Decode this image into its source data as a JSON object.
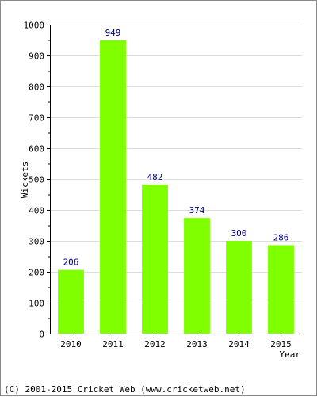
{
  "chart_data": {
    "type": "bar",
    "title": "",
    "xlabel": "Year",
    "ylabel": "Wickets",
    "categories": [
      "2010",
      "2011",
      "2012",
      "2013",
      "2014",
      "2015"
    ],
    "values": [
      206,
      949,
      482,
      374,
      300,
      286
    ],
    "ylim": [
      0,
      1000
    ],
    "yticks": [
      0,
      100,
      200,
      300,
      400,
      500,
      600,
      700,
      800,
      900,
      1000
    ],
    "grid": true,
    "legend": "none",
    "bar_color": "#80ff00",
    "label_color": "#000080"
  },
  "footer": "(C) 2001-2015 Cricket Web (www.cricketweb.net)"
}
